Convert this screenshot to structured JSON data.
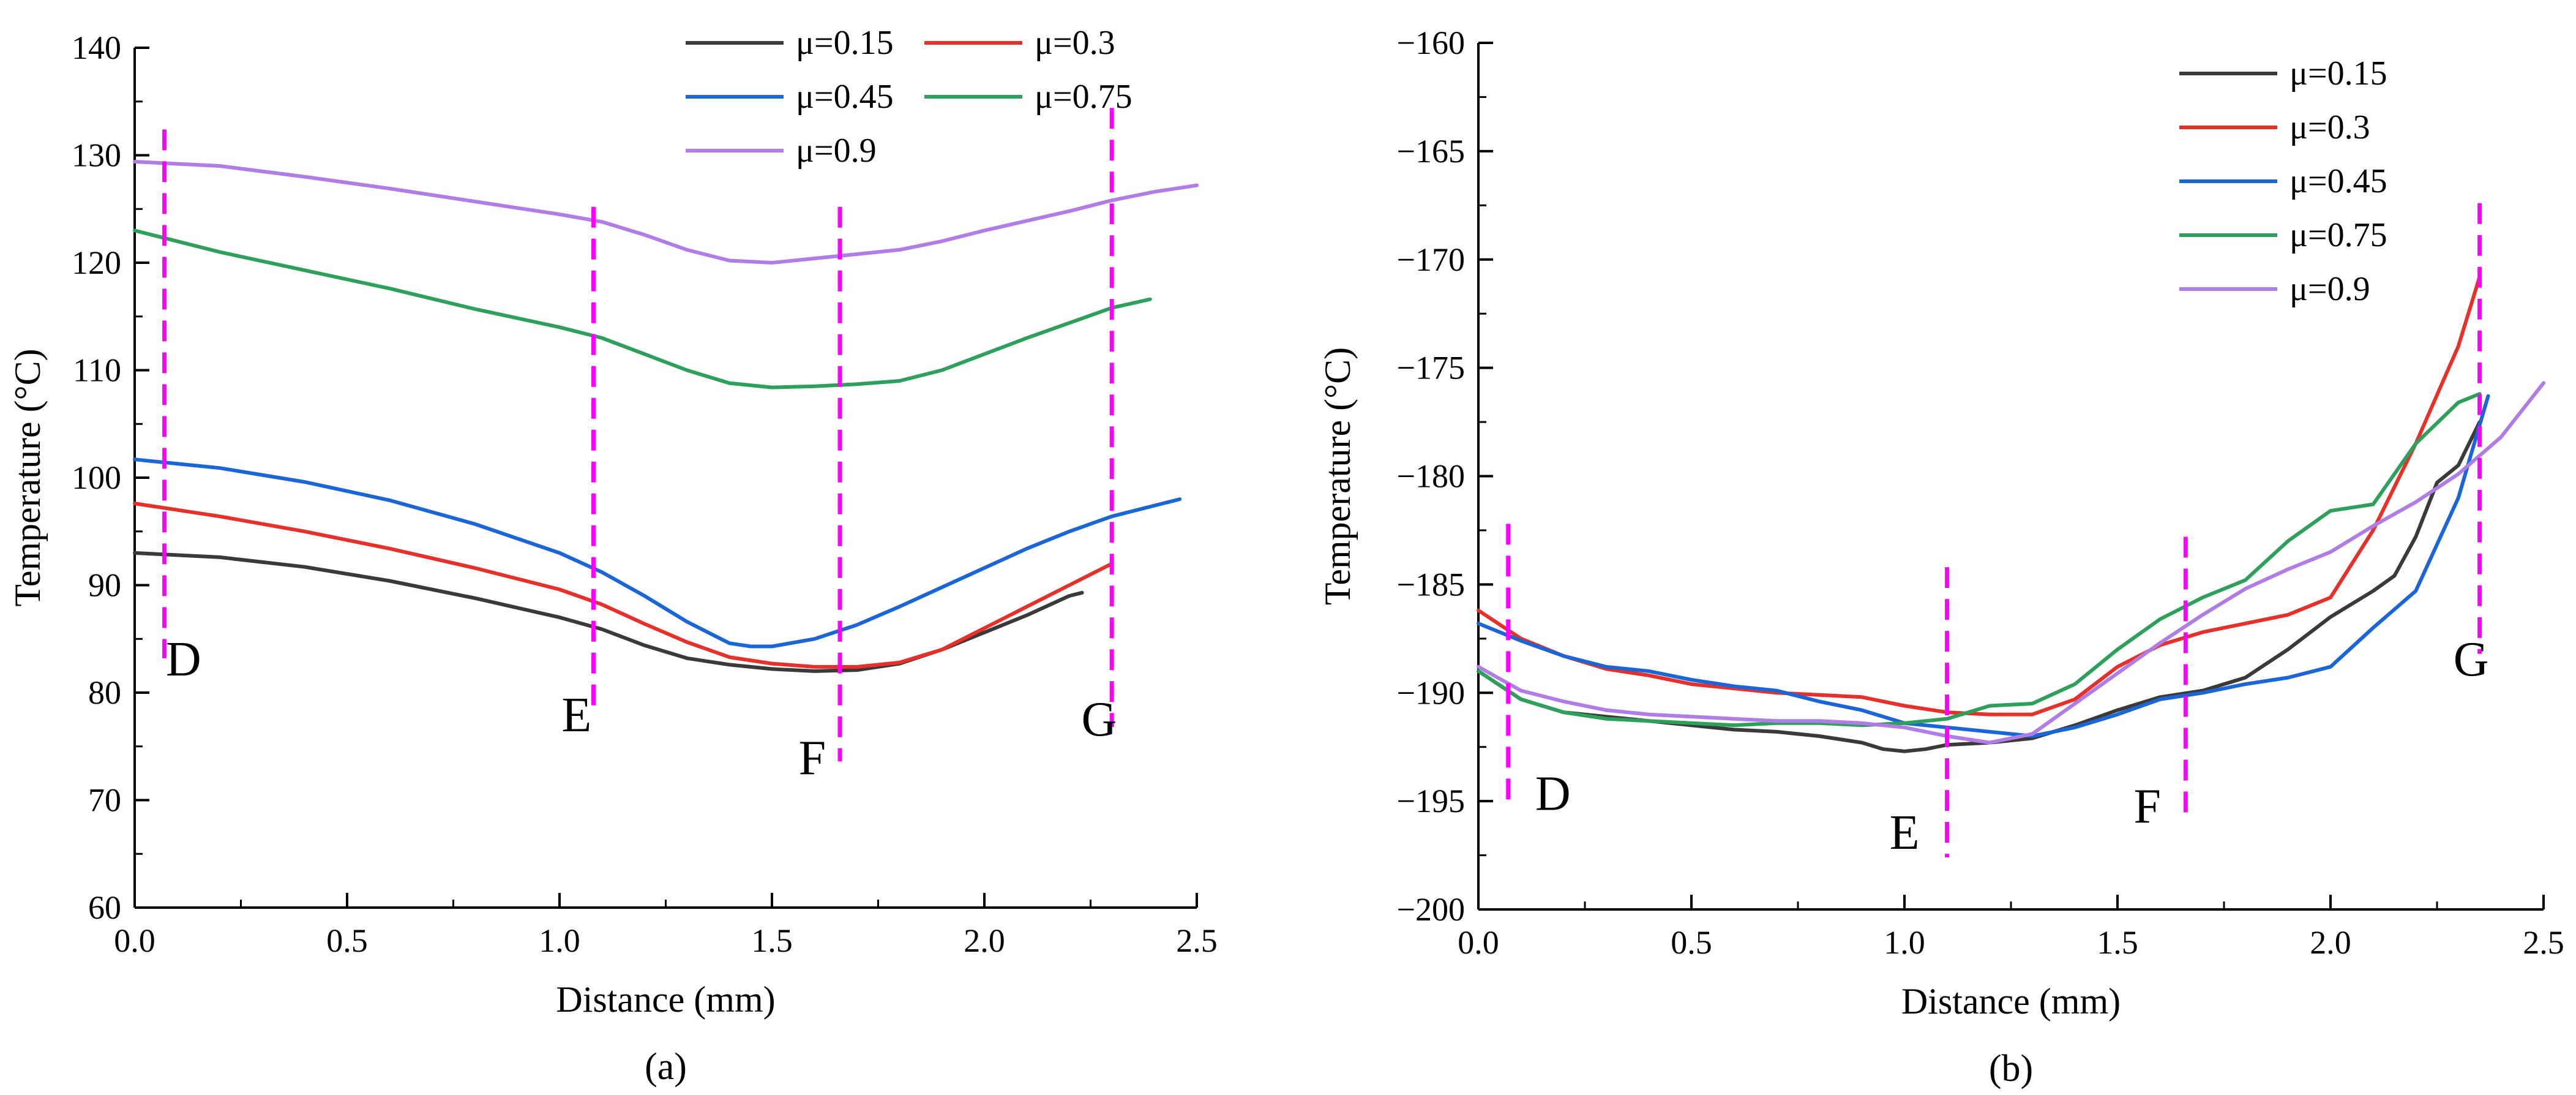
{
  "chart_data": [
    {
      "type": "line",
      "panel_label": "(a)",
      "xlabel": "Distance (mm)",
      "ylabel": "Temperature (°C)",
      "xlim": [
        0,
        2.5
      ],
      "ylim": [
        60,
        140
      ],
      "xticks": [
        0,
        0.5,
        1,
        1.5,
        2,
        2.5
      ],
      "xtick_labels": [
        "0.0",
        "0.5",
        "1.0",
        "1.5",
        "2.0",
        "2.5"
      ],
      "yticks": [
        60,
        70,
        80,
        90,
        100,
        110,
        120,
        130,
        140
      ],
      "ytick_labels": [
        "60",
        "70",
        "80",
        "90",
        "100",
        "110",
        "120",
        "130",
        "140"
      ],
      "legend_position": "top-right",
      "series": [
        {
          "name": "μ=0.15",
          "color": "#3a3a3a",
          "x": [
            0,
            0.2,
            0.4,
            0.6,
            0.8,
            1.0,
            1.1,
            1.2,
            1.3,
            1.4,
            1.5,
            1.6,
            1.7,
            1.8,
            1.9,
            2.0,
            2.1,
            2.2,
            2.23
          ],
          "y": [
            93.0,
            92.6,
            91.7,
            90.4,
            88.8,
            87.0,
            85.9,
            84.4,
            83.2,
            82.6,
            82.2,
            82.0,
            82.1,
            82.7,
            84.0,
            85.6,
            87.2,
            89.0,
            89.3
          ]
        },
        {
          "name": "μ=0.3",
          "color": "#e8302a",
          "x": [
            0,
            0.2,
            0.4,
            0.6,
            0.8,
            1.0,
            1.1,
            1.2,
            1.3,
            1.4,
            1.5,
            1.6,
            1.7,
            1.8,
            1.9,
            2.0,
            2.1,
            2.2,
            2.3
          ],
          "y": [
            97.6,
            96.4,
            95.0,
            93.4,
            91.6,
            89.6,
            88.2,
            86.4,
            84.7,
            83.3,
            82.7,
            82.4,
            82.4,
            82.8,
            84.0,
            86.0,
            88.0,
            90.0,
            92.0
          ]
        },
        {
          "name": "μ=0.45",
          "color": "#1a66d9",
          "x": [
            0,
            0.2,
            0.4,
            0.6,
            0.8,
            1.0,
            1.1,
            1.2,
            1.3,
            1.4,
            1.45,
            1.5,
            1.6,
            1.7,
            1.8,
            1.9,
            2.0,
            2.1,
            2.2,
            2.3,
            2.46
          ],
          "y": [
            101.7,
            100.9,
            99.6,
            97.9,
            95.7,
            93.0,
            91.2,
            89.0,
            86.6,
            84.6,
            84.3,
            84.3,
            85.0,
            86.3,
            88.0,
            89.8,
            91.6,
            93.4,
            95.0,
            96.4,
            98.0
          ]
        },
        {
          "name": "μ=0.75",
          "color": "#2ea05c",
          "x": [
            0,
            0.2,
            0.4,
            0.6,
            0.8,
            1.0,
            1.1,
            1.2,
            1.3,
            1.4,
            1.5,
            1.6,
            1.7,
            1.8,
            1.9,
            2.0,
            2.1,
            2.2,
            2.3,
            2.39
          ],
          "y": [
            123.0,
            121.0,
            119.3,
            117.6,
            115.7,
            114.0,
            113.0,
            111.5,
            110.0,
            108.8,
            108.4,
            108.5,
            108.7,
            109.0,
            110.0,
            111.5,
            113.0,
            114.4,
            115.8,
            116.6
          ]
        },
        {
          "name": "μ=0.9",
          "color": "#b07ce6",
          "x": [
            0,
            0.2,
            0.4,
            0.6,
            0.8,
            1.0,
            1.1,
            1.2,
            1.3,
            1.4,
            1.5,
            1.6,
            1.7,
            1.8,
            1.9,
            2.0,
            2.1,
            2.2,
            2.3,
            2.4,
            2.5
          ],
          "y": [
            129.4,
            129.0,
            128.0,
            126.9,
            125.7,
            124.5,
            123.8,
            122.6,
            121.2,
            120.2,
            120.0,
            120.4,
            120.8,
            121.2,
            122.0,
            123.0,
            123.9,
            124.8,
            125.8,
            126.6,
            127.2
          ]
        }
      ],
      "markers": [
        {
          "label": "D",
          "x": 0.07
        },
        {
          "label": "E",
          "x": 1.08
        },
        {
          "label": "F",
          "x": 1.66
        },
        {
          "label": "G",
          "x": 2.3
        }
      ],
      "marker_color": "#ff00ff"
    },
    {
      "type": "line",
      "panel_label": "(b)",
      "xlabel": "Distance (mm)",
      "ylabel": "Temperature (°C)",
      "xlim": [
        0,
        2.5
      ],
      "ylim": [
        -200,
        -160
      ],
      "xticks": [
        0,
        0.5,
        1,
        1.5,
        2,
        2.5
      ],
      "xtick_labels": [
        "0.0",
        "0.5",
        "1.0",
        "1.5",
        "2.0",
        "2.5"
      ],
      "yticks": [
        -200,
        -195,
        -190,
        -185,
        -180,
        -175,
        -170,
        -165,
        -160
      ],
      "ytick_labels": [
        "−200",
        "−195",
        "−190",
        "−185",
        "−180",
        "−175",
        "−170",
        "−165",
        "−160"
      ],
      "legend_position": "top-right",
      "series": [
        {
          "name": "μ=0.15",
          "color": "#3a3a3a",
          "x": [
            0,
            0.1,
            0.2,
            0.3,
            0.4,
            0.5,
            0.6,
            0.7,
            0.8,
            0.9,
            0.95,
            1.0,
            1.05,
            1.1,
            1.2,
            1.3,
            1.4,
            1.5,
            1.6,
            1.7,
            1.8,
            1.9,
            2.0,
            2.1,
            2.15,
            2.2,
            2.25,
            2.3,
            2.35
          ],
          "y": [
            -189.0,
            -190.3,
            -190.9,
            -191.1,
            -191.3,
            -191.5,
            -191.7,
            -191.8,
            -192.0,
            -192.3,
            -192.6,
            -192.7,
            -192.6,
            -192.4,
            -192.3,
            -192.1,
            -191.5,
            -190.8,
            -190.2,
            -189.9,
            -189.3,
            -188.0,
            -186.5,
            -185.3,
            -184.6,
            -182.8,
            -180.3,
            -179.5,
            -177.5
          ]
        },
        {
          "name": "μ=0.3",
          "color": "#e8302a",
          "x": [
            0,
            0.1,
            0.2,
            0.3,
            0.4,
            0.5,
            0.6,
            0.7,
            0.8,
            0.9,
            1.0,
            1.1,
            1.2,
            1.3,
            1.4,
            1.5,
            1.6,
            1.7,
            1.8,
            1.9,
            1.95,
            2.0,
            2.1,
            2.2,
            2.3,
            2.35
          ],
          "y": [
            -186.2,
            -187.5,
            -188.3,
            -188.9,
            -189.2,
            -189.6,
            -189.8,
            -190.0,
            -190.1,
            -190.2,
            -190.6,
            -190.9,
            -191.0,
            -191.0,
            -190.3,
            -188.8,
            -187.8,
            -187.2,
            -186.8,
            -186.4,
            -186.0,
            -185.6,
            -182.5,
            -178.5,
            -174.0,
            -170.8
          ]
        },
        {
          "name": "μ=0.45",
          "color": "#1a66d9",
          "x": [
            0,
            0.1,
            0.2,
            0.3,
            0.4,
            0.5,
            0.6,
            0.7,
            0.8,
            0.9,
            1.0,
            1.1,
            1.2,
            1.3,
            1.4,
            1.5,
            1.6,
            1.7,
            1.8,
            1.9,
            2.0,
            2.1,
            2.2,
            2.3,
            2.37
          ],
          "y": [
            -186.8,
            -187.6,
            -188.3,
            -188.8,
            -189.0,
            -189.4,
            -189.7,
            -189.9,
            -190.4,
            -190.8,
            -191.4,
            -191.6,
            -191.8,
            -192.0,
            -191.6,
            -191.0,
            -190.3,
            -190.0,
            -189.6,
            -189.3,
            -188.8,
            -187.0,
            -185.3,
            -181.0,
            -176.3
          ]
        },
        {
          "name": "μ=0.75",
          "color": "#2ea05c",
          "x": [
            0,
            0.1,
            0.2,
            0.3,
            0.4,
            0.5,
            0.6,
            0.7,
            0.8,
            0.9,
            1.0,
            1.1,
            1.15,
            1.2,
            1.3,
            1.4,
            1.5,
            1.6,
            1.7,
            1.8,
            1.9,
            2.0,
            2.1,
            2.2,
            2.3,
            2.35
          ],
          "y": [
            -189.0,
            -190.3,
            -190.9,
            -191.2,
            -191.3,
            -191.4,
            -191.5,
            -191.4,
            -191.4,
            -191.5,
            -191.4,
            -191.2,
            -190.9,
            -190.6,
            -190.5,
            -189.6,
            -188.0,
            -186.6,
            -185.6,
            -184.8,
            -183.0,
            -181.6,
            -181.3,
            -178.5,
            -176.6,
            -176.2
          ]
        },
        {
          "name": "μ=0.9",
          "color": "#b07ce6",
          "x": [
            0,
            0.1,
            0.2,
            0.3,
            0.4,
            0.5,
            0.6,
            0.7,
            0.8,
            0.9,
            1.0,
            1.1,
            1.2,
            1.3,
            1.4,
            1.5,
            1.6,
            1.7,
            1.8,
            1.9,
            2.0,
            2.1,
            2.2,
            2.3,
            2.4,
            2.5
          ],
          "y": [
            -188.8,
            -189.9,
            -190.4,
            -190.8,
            -191.0,
            -191.1,
            -191.2,
            -191.3,
            -191.3,
            -191.4,
            -191.6,
            -192.0,
            -192.3,
            -191.9,
            -190.5,
            -189.1,
            -187.7,
            -186.4,
            -185.2,
            -184.3,
            -183.5,
            -182.3,
            -181.2,
            -179.9,
            -178.2,
            -175.7
          ]
        }
      ],
      "markers": [
        {
          "label": "D",
          "x": 0.07
        },
        {
          "label": "E",
          "x": 1.1
        },
        {
          "label": "F",
          "x": 1.66
        },
        {
          "label": "G",
          "x": 2.35
        }
      ],
      "marker_color": "#ff00ff"
    }
  ]
}
